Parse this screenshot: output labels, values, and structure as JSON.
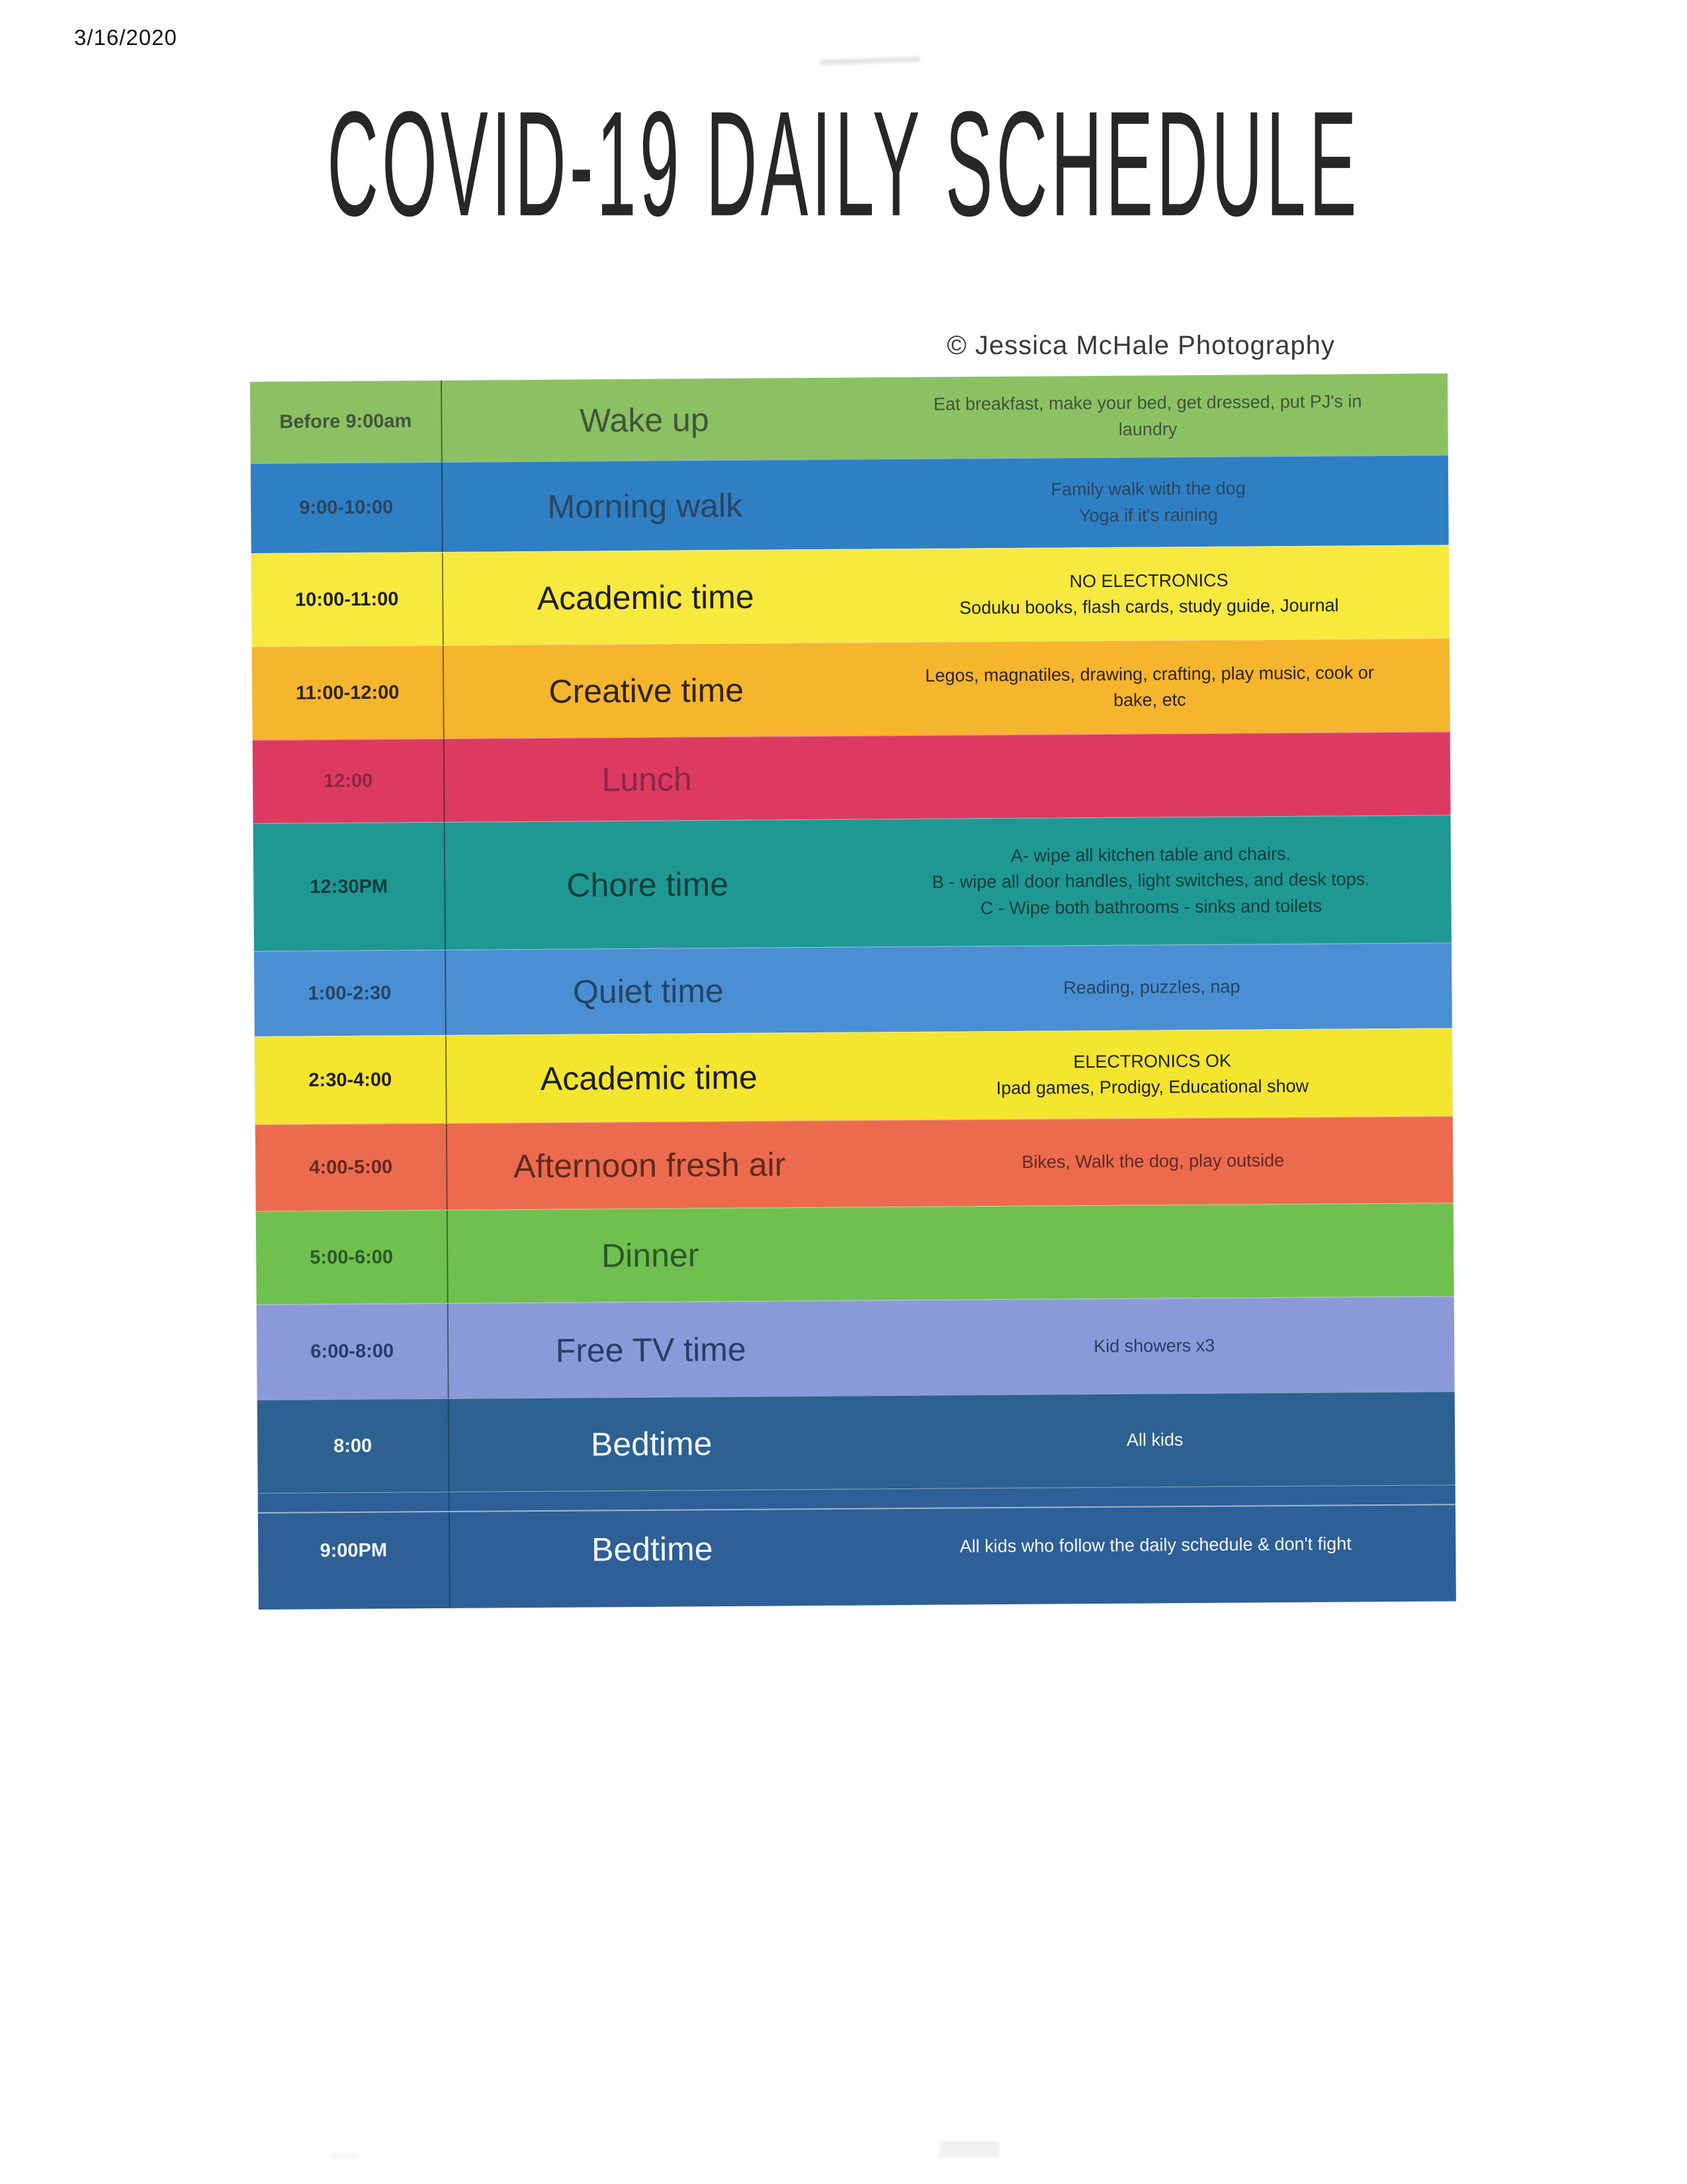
{
  "page": {
    "scan_date": "3/16/2020",
    "title": "COVID-19 DAILY SCHEDULE",
    "credit": "© Jessica McHale Photography"
  },
  "schedule": {
    "rows": [
      {
        "time": "Before 9:00am",
        "activity": "Wake up",
        "details": "Eat breakfast, make your bed, get dressed, put PJ's in\nlaundry",
        "bg": "#8cc163",
        "fg": "#41553a"
      },
      {
        "time": "9:00-10:00",
        "activity": "Morning walk",
        "details": "Family walk with the dog\nYoga if it's raining",
        "bg": "#2f7fc4",
        "fg": "#2a4661"
      },
      {
        "time": "10:00-11:00",
        "activity": "Academic time",
        "details": "NO ELECTRONICS\nSoduku books, flash cards, study guide, Journal",
        "bg": "#f7e93e",
        "fg": "#1d1d1d"
      },
      {
        "time": "11:00-12:00",
        "activity": "Creative time",
        "details": "Legos, magnatiles, drawing, crafting, play music, cook or\nbake, etc",
        "bg": "#f5b52d",
        "fg": "#2e2318"
      },
      {
        "time": "12:00",
        "activity": "Lunch",
        "details": "",
        "bg": "#dd3a62",
        "fg": "#8d2743"
      },
      {
        "time": "12:30PM",
        "activity": "Chore time",
        "details": "A- wipe all kitchen table and chairs.\nB - wipe all door handles, light switches, and desk tops.\nC - Wipe both bathrooms - sinks and toilets",
        "bg": "#1f9894",
        "fg": "#0e3e3c"
      },
      {
        "time": "1:00-2:30",
        "activity": "Quiet time",
        "details": "Reading, puzzles, nap",
        "bg": "#4a8fd3",
        "fg": "#244564"
      },
      {
        "time": "2:30-4:00",
        "activity": "Academic time",
        "details": "ELECTRONICS OK\nIpad games, Prodigy, Educational show",
        "bg": "#f4e52f",
        "fg": "#1d1d1d"
      },
      {
        "time": "4:00-5:00",
        "activity": "Afternoon fresh air",
        "details": "Bikes, Walk the dog, play outside",
        "bg": "#ec6b4e",
        "fg": "#602a20"
      },
      {
        "time": "5:00-6:00",
        "activity": "Dinner",
        "details": "",
        "bg": "#6fc04e",
        "fg": "#2d5829"
      },
      {
        "time": "6:00-8:00",
        "activity": "Free TV time",
        "details": "Kid showers x3",
        "bg": "#8a9ad9",
        "fg": "#2c3c66"
      },
      {
        "time": "8:00",
        "activity": "Bedtime",
        "details": "All kids",
        "bg": "#2c6191",
        "fg": "#f2f5f9"
      },
      {
        "time": "9:00PM",
        "activity": "Bedtime",
        "details": "All kids who follow the daily schedule & don't fight",
        "bg": "#2e5f97",
        "fg": "#f2f5f9"
      }
    ]
  }
}
